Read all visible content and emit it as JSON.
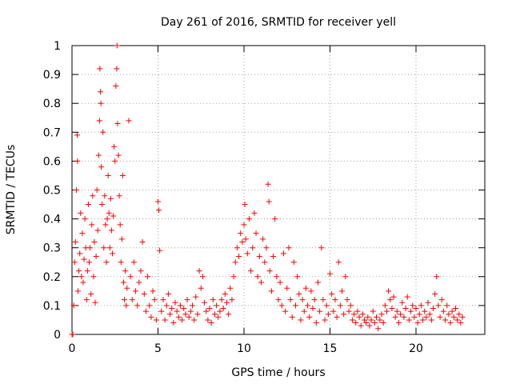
{
  "chart_data": {
    "type": "scatter",
    "title": "Day 261 of 2016, SRMTID for receiver yell",
    "xlabel": "GPS time / hours",
    "ylabel": "SRMTID / TECUs",
    "xlim": [
      0,
      24
    ],
    "ylim": [
      0,
      1
    ],
    "x_ticks": [
      0,
      5,
      10,
      15,
      20
    ],
    "x_tick_labels": [
      "0",
      "5",
      "10",
      "15",
      "20"
    ],
    "y_ticks": [
      0,
      0.1,
      0.2,
      0.3,
      0.4,
      0.5,
      0.6,
      0.7,
      0.8,
      0.9,
      1
    ],
    "y_tick_labels": [
      "0",
      "0.1",
      "0.2",
      "0.3",
      "0.4",
      "0.5",
      "0.6",
      "0.7",
      "0.8",
      "0.9",
      "1"
    ],
    "grid": true,
    "marker": "+",
    "color": "#ff0000",
    "series": [
      {
        "name": "SRMTID",
        "points": [
          [
            0.0,
            0.0
          ],
          [
            0.05,
            0.0
          ],
          [
            0.1,
            0.1
          ],
          [
            0.15,
            0.25
          ],
          [
            0.2,
            0.32
          ],
          [
            0.25,
            0.5
          ],
          [
            0.3,
            0.69
          ],
          [
            0.32,
            0.6
          ],
          [
            0.35,
            0.15
          ],
          [
            0.4,
            0.22
          ],
          [
            0.45,
            0.28
          ],
          [
            0.5,
            0.42
          ],
          [
            0.55,
            0.2
          ],
          [
            0.6,
            0.35
          ],
          [
            0.65,
            0.18
          ],
          [
            0.7,
            0.26
          ],
          [
            0.75,
            0.4
          ],
          [
            0.8,
            0.3
          ],
          [
            0.85,
            0.12
          ],
          [
            0.9,
            0.22
          ],
          [
            0.95,
            0.45
          ],
          [
            1.0,
            0.25
          ],
          [
            1.05,
            0.3
          ],
          [
            1.1,
            0.14
          ],
          [
            1.15,
            0.38
          ],
          [
            1.2,
            0.48
          ],
          [
            1.25,
            0.2
          ],
          [
            1.3,
            0.32
          ],
          [
            1.35,
            0.11
          ],
          [
            1.4,
            0.27
          ],
          [
            1.45,
            0.5
          ],
          [
            1.5,
            0.36
          ],
          [
            1.55,
            0.62
          ],
          [
            1.6,
            0.74
          ],
          [
            1.62,
            0.92
          ],
          [
            1.65,
            0.84
          ],
          [
            1.68,
            0.8
          ],
          [
            1.7,
            0.58
          ],
          [
            1.75,
            0.45
          ],
          [
            1.8,
            0.7
          ],
          [
            1.85,
            0.3
          ],
          [
            1.9,
            0.48
          ],
          [
            1.95,
            0.38
          ],
          [
            2.0,
            0.25
          ],
          [
            2.05,
            0.4
          ],
          [
            2.1,
            0.55
          ],
          [
            2.15,
            0.42
          ],
          [
            2.2,
            0.3
          ],
          [
            2.25,
            0.47
          ],
          [
            2.3,
            0.36
          ],
          [
            2.35,
            0.28
          ],
          [
            2.4,
            0.41
          ],
          [
            2.45,
            0.65
          ],
          [
            2.5,
            0.6
          ],
          [
            2.55,
            0.86
          ],
          [
            2.6,
            0.92
          ],
          [
            2.62,
            1.0
          ],
          [
            2.65,
            0.73
          ],
          [
            2.7,
            0.62
          ],
          [
            2.75,
            0.48
          ],
          [
            2.8,
            0.38
          ],
          [
            2.85,
            0.25
          ],
          [
            2.9,
            0.33
          ],
          [
            2.95,
            0.55
          ],
          [
            3.0,
            0.18
          ],
          [
            3.05,
            0.12
          ],
          [
            3.1,
            0.22
          ],
          [
            3.15,
            0.1
          ],
          [
            3.2,
            0.16
          ],
          [
            3.3,
            0.74
          ],
          [
            3.4,
            0.2
          ],
          [
            3.5,
            0.12
          ],
          [
            3.6,
            0.25
          ],
          [
            3.7,
            0.15
          ],
          [
            3.8,
            0.1
          ],
          [
            3.9,
            0.18
          ],
          [
            4.0,
            0.22
          ],
          [
            4.1,
            0.32
          ],
          [
            4.2,
            0.14
          ],
          [
            4.3,
            0.08
          ],
          [
            4.4,
            0.2
          ],
          [
            4.5,
            0.1
          ],
          [
            4.6,
            0.06
          ],
          [
            4.7,
            0.15
          ],
          [
            4.8,
            0.12
          ],
          [
            4.9,
            0.05
          ],
          [
            5.0,
            0.46
          ],
          [
            5.05,
            0.43
          ],
          [
            5.1,
            0.29
          ],
          [
            5.2,
            0.08
          ],
          [
            5.3,
            0.12
          ],
          [
            5.4,
            0.05
          ],
          [
            5.5,
            0.1
          ],
          [
            5.6,
            0.14
          ],
          [
            5.7,
            0.07
          ],
          [
            5.8,
            0.09
          ],
          [
            5.9,
            0.04
          ],
          [
            6.0,
            0.11
          ],
          [
            6.1,
            0.08
          ],
          [
            6.2,
            0.06
          ],
          [
            6.3,
            0.1
          ],
          [
            6.4,
            0.05
          ],
          [
            6.5,
            0.09
          ],
          [
            6.6,
            0.07
          ],
          [
            6.7,
            0.12
          ],
          [
            6.8,
            0.06
          ],
          [
            6.9,
            0.08
          ],
          [
            7.0,
            0.1
          ],
          [
            7.1,
            0.05
          ],
          [
            7.2,
            0.13
          ],
          [
            7.3,
            0.07
          ],
          [
            7.4,
            0.22
          ],
          [
            7.5,
            0.16
          ],
          [
            7.6,
            0.2
          ],
          [
            7.7,
            0.11
          ],
          [
            7.8,
            0.08
          ],
          [
            7.9,
            0.05
          ],
          [
            8.0,
            0.09
          ],
          [
            8.1,
            0.04
          ],
          [
            8.2,
            0.12
          ],
          [
            8.3,
            0.07
          ],
          [
            8.4,
            0.1
          ],
          [
            8.5,
            0.06
          ],
          [
            8.6,
            0.08
          ],
          [
            8.7,
            0.12
          ],
          [
            8.8,
            0.09
          ],
          [
            8.9,
            0.14
          ],
          [
            9.0,
            0.11
          ],
          [
            9.1,
            0.07
          ],
          [
            9.2,
            0.16
          ],
          [
            9.3,
            0.12
          ],
          [
            9.4,
            0.2
          ],
          [
            9.5,
            0.25
          ],
          [
            9.6,
            0.3
          ],
          [
            9.7,
            0.27
          ],
          [
            9.8,
            0.35
          ],
          [
            9.9,
            0.32
          ],
          [
            10.0,
            0.38
          ],
          [
            10.05,
            0.45
          ],
          [
            10.1,
            0.33
          ],
          [
            10.2,
            0.28
          ],
          [
            10.3,
            0.4
          ],
          [
            10.4,
            0.22
          ],
          [
            10.5,
            0.3
          ],
          [
            10.6,
            0.42
          ],
          [
            10.7,
            0.35
          ],
          [
            10.8,
            0.2
          ],
          [
            10.9,
            0.27
          ],
          [
            11.0,
            0.18
          ],
          [
            11.1,
            0.33
          ],
          [
            11.2,
            0.25
          ],
          [
            11.3,
            0.3
          ],
          [
            11.4,
            0.52
          ],
          [
            11.45,
            0.46
          ],
          [
            11.5,
            0.22
          ],
          [
            11.6,
            0.15
          ],
          [
            11.7,
            0.27
          ],
          [
            11.8,
            0.4
          ],
          [
            11.9,
            0.2
          ],
          [
            12.0,
            0.12
          ],
          [
            12.1,
            0.18
          ],
          [
            12.2,
            0.1
          ],
          [
            12.3,
            0.28
          ],
          [
            12.4,
            0.08
          ],
          [
            12.5,
            0.16
          ],
          [
            12.6,
            0.3
          ],
          [
            12.7,
            0.12
          ],
          [
            12.8,
            0.06
          ],
          [
            12.9,
            0.25
          ],
          [
            13.0,
            0.1
          ],
          [
            13.1,
            0.2
          ],
          [
            13.2,
            0.14
          ],
          [
            13.3,
            0.05
          ],
          [
            13.4,
            0.12
          ],
          [
            13.5,
            0.08
          ],
          [
            13.6,
            0.16
          ],
          [
            13.7,
            0.1
          ],
          [
            13.8,
            0.06
          ],
          [
            13.9,
            0.15
          ],
          [
            14.0,
            0.09
          ],
          [
            14.1,
            0.12
          ],
          [
            14.2,
            0.04
          ],
          [
            14.3,
            0.18
          ],
          [
            14.4,
            0.08
          ],
          [
            14.5,
            0.3
          ],
          [
            14.6,
            0.12
          ],
          [
            14.7,
            0.05
          ],
          [
            14.8,
            0.1
          ],
          [
            14.9,
            0.07
          ],
          [
            15.0,
            0.21
          ],
          [
            15.1,
            0.14
          ],
          [
            15.2,
            0.08
          ],
          [
            15.3,
            0.12
          ],
          [
            15.4,
            0.06
          ],
          [
            15.5,
            0.25
          ],
          [
            15.6,
            0.1
          ],
          [
            15.7,
            0.15
          ],
          [
            15.8,
            0.07
          ],
          [
            15.9,
            0.2
          ],
          [
            16.0,
            0.12
          ],
          [
            16.1,
            0.08
          ],
          [
            16.2,
            0.1
          ],
          [
            16.3,
            0.05
          ],
          [
            16.4,
            0.07
          ],
          [
            16.5,
            0.04
          ],
          [
            16.6,
            0.08
          ],
          [
            16.7,
            0.06
          ],
          [
            16.8,
            0.03
          ],
          [
            16.9,
            0.07
          ],
          [
            17.0,
            0.05
          ],
          [
            17.1,
            0.04
          ],
          [
            17.2,
            0.06
          ],
          [
            17.3,
            0.03
          ],
          [
            17.4,
            0.05
          ],
          [
            17.5,
            0.08
          ],
          [
            17.6,
            0.04
          ],
          [
            17.7,
            0.06
          ],
          [
            17.8,
            0.02
          ],
          [
            17.9,
            0.05
          ],
          [
            18.0,
            0.07
          ],
          [
            18.1,
            0.04
          ],
          [
            18.2,
            0.1
          ],
          [
            18.3,
            0.08
          ],
          [
            18.4,
            0.15
          ],
          [
            18.5,
            0.12
          ],
          [
            18.6,
            0.09
          ],
          [
            18.7,
            0.13
          ],
          [
            18.8,
            0.06
          ],
          [
            18.9,
            0.08
          ],
          [
            19.0,
            0.04
          ],
          [
            19.1,
            0.07
          ],
          [
            19.2,
            0.11
          ],
          [
            19.3,
            0.06
          ],
          [
            19.4,
            0.09
          ],
          [
            19.5,
            0.13
          ],
          [
            19.6,
            0.05
          ],
          [
            19.7,
            0.08
          ],
          [
            19.8,
            0.1
          ],
          [
            19.9,
            0.06
          ],
          [
            20.0,
            0.09
          ],
          [
            20.1,
            0.04
          ],
          [
            20.2,
            0.07
          ],
          [
            20.3,
            0.1
          ],
          [
            20.4,
            0.05
          ],
          [
            20.5,
            0.08
          ],
          [
            20.6,
            0.06
          ],
          [
            20.7,
            0.11
          ],
          [
            20.8,
            0.07
          ],
          [
            20.9,
            0.05
          ],
          [
            21.0,
            0.09
          ],
          [
            21.1,
            0.14
          ],
          [
            21.2,
            0.2
          ],
          [
            21.3,
            0.1
          ],
          [
            21.4,
            0.06
          ],
          [
            21.5,
            0.12
          ],
          [
            21.6,
            0.08
          ],
          [
            21.7,
            0.05
          ],
          [
            21.8,
            0.1
          ],
          [
            21.9,
            0.07
          ],
          [
            22.0,
            0.04
          ],
          [
            22.1,
            0.08
          ],
          [
            22.2,
            0.06
          ],
          [
            22.3,
            0.09
          ],
          [
            22.4,
            0.05
          ],
          [
            22.5,
            0.07
          ],
          [
            22.6,
            0.04
          ],
          [
            22.7,
            0.06
          ]
        ]
      }
    ]
  }
}
